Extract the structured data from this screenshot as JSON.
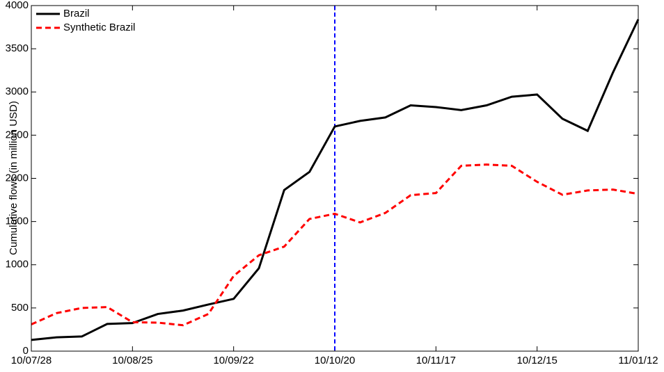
{
  "chart_data": {
    "type": "line",
    "ylabel": "Cumulative flows (in million USD)",
    "categories": [
      "10/07/28",
      null,
      null,
      null,
      "10/08/25",
      null,
      null,
      null,
      "10/09/22",
      null,
      null,
      null,
      "10/10/20",
      null,
      null,
      null,
      "10/11/17",
      null,
      null,
      null,
      "10/12/15",
      null,
      null,
      null,
      "11/01/12"
    ],
    "series": [
      {
        "name": "Brazil",
        "color": "#000000",
        "dash": "solid",
        "values": [
          130,
          160,
          170,
          315,
          325,
          430,
          470,
          540,
          605,
          960,
          1865,
          2075,
          2600,
          2665,
          2705,
          2845,
          2825,
          2790,
          2845,
          2945,
          2970,
          2690,
          2550,
          3225,
          3840
        ]
      },
      {
        "name": "Synthetic Brazil",
        "color": "#ff0000",
        "dash": "dashed",
        "values": [
          310,
          440,
          500,
          510,
          335,
          330,
          300,
          430,
          870,
          1110,
          1210,
          1530,
          1590,
          1490,
          1600,
          1805,
          1830,
          2145,
          2160,
          2145,
          1960,
          1810,
          1860,
          1870,
          1820
        ]
      }
    ],
    "vline": {
      "x": 12,
      "color": "#0000ff"
    },
    "ylim": [
      0,
      4000
    ],
    "yticks": [
      0,
      500,
      1000,
      1500,
      2000,
      2500,
      3000,
      3500,
      4000
    ],
    "legend": "upper-left"
  }
}
